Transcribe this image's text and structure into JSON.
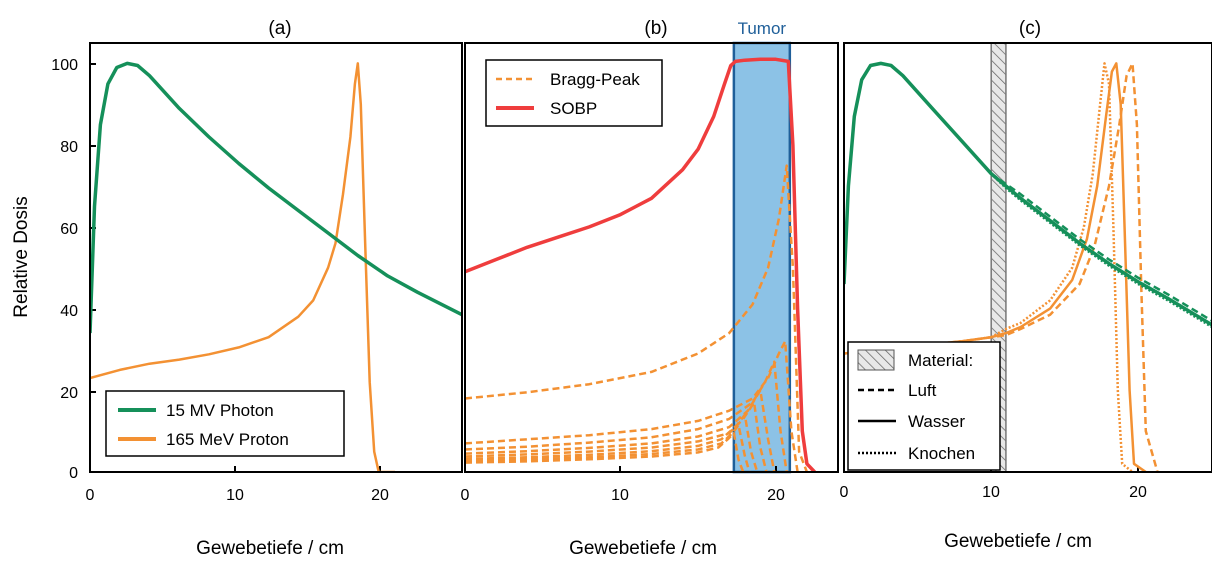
{
  "colors": {
    "photon": "#15905a",
    "proton": "#f39133",
    "sobp": "#ef3d3d",
    "tumor_fill": "#8cc2e6",
    "tumor_edge": "#1f5f99"
  },
  "ylabel": "Relative Dosis",
  "chart_data": [
    {
      "type": "line",
      "title": "(a)",
      "xlabel": "Gewebetiefe / cm",
      "ylabel": "Relative Dosis",
      "xlim": [
        0,
        25
      ],
      "ylim": [
        0,
        105
      ],
      "xticks": [
        "0",
        "10",
        "20"
      ],
      "yticks": [
        "0",
        "20",
        "40",
        "60",
        "80",
        "100"
      ],
      "legend_position": "bottom-center",
      "series": [
        {
          "name": "15 MV Photon",
          "color": "#15905a",
          "style": "solid",
          "x": [
            0,
            0.3,
            0.7,
            1.2,
            1.8,
            2.5,
            3.2,
            4,
            6,
            8,
            10,
            12,
            14,
            16,
            18,
            20,
            22,
            25
          ],
          "y": [
            34,
            65,
            85,
            95,
            99,
            100,
            99.5,
            97,
            89,
            82,
            75.5,
            69.5,
            64,
            58.5,
            53,
            48,
            44,
            38.5
          ]
        },
        {
          "name": "165 MeV Proton",
          "color": "#f39133",
          "style": "solid",
          "x": [
            0,
            2,
            4,
            6,
            8,
            10,
            12,
            14,
            15,
            16,
            16.5,
            17,
            17.5,
            17.8,
            18.0,
            18.2,
            18.5,
            18.8,
            19.1,
            19.4,
            20.5
          ],
          "y": [
            23,
            25,
            26.5,
            27.5,
            28.8,
            30.5,
            33,
            38,
            42,
            50,
            56,
            68,
            82,
            95,
            100,
            90,
            55,
            22,
            5,
            0,
            0
          ]
        }
      ]
    },
    {
      "type": "line",
      "title": "(b)",
      "xlabel": "Gewebetiefe / cm",
      "xlim": [
        0,
        24
      ],
      "ylim": [
        0,
        105
      ],
      "xticks": [
        "0",
        "10",
        "20"
      ],
      "annotation": "Tumor",
      "tumor_region": [
        17.3,
        20.9
      ],
      "legend_position": "top-left",
      "series": [
        {
          "name": "SOBP",
          "color": "#ef3d3d",
          "style": "solid",
          "x": [
            0,
            2,
            4,
            6,
            8,
            10,
            12,
            14,
            15,
            16,
            16.7,
            17.1,
            17.4,
            18,
            19,
            20,
            20.8,
            21.1,
            21.4,
            21.7,
            22,
            22.5
          ],
          "y": [
            49,
            52,
            55,
            57.5,
            60,
            63,
            67,
            74,
            79,
            87,
            95,
            99.5,
            100.5,
            100.8,
            101,
            101,
            100.5,
            80,
            40,
            10,
            2,
            0
          ]
        },
        {
          "name": "Bragg-Peak",
          "color": "#f39133",
          "style": "dashed",
          "x": [
            0,
            4,
            8,
            12,
            15,
            17,
            18.5,
            19.5,
            20.2,
            20.7,
            21.1,
            21.5,
            22
          ],
          "y": [
            18,
            19.5,
            21.5,
            24.5,
            29,
            34,
            41,
            50,
            62,
            75,
            50,
            5,
            0
          ]
        },
        {
          "name": "",
          "color": "#f39133",
          "style": "dashed",
          "x": [
            0,
            4,
            8,
            12,
            15,
            17,
            18.5,
            19.5,
            20.2,
            20.6,
            21.0,
            21.4
          ],
          "y": [
            7,
            8,
            9,
            10.5,
            12.5,
            15,
            18,
            23,
            29,
            32,
            10,
            0
          ]
        },
        {
          "name": "",
          "color": "#f39133",
          "style": "dashed",
          "x": [
            0,
            4,
            8,
            12,
            15,
            17,
            18.5,
            19.3,
            19.9,
            20.3,
            20.7
          ],
          "y": [
            5.5,
            6.2,
            7.2,
            8.5,
            10.5,
            13,
            17,
            22,
            27,
            10,
            0
          ]
        },
        {
          "name": "",
          "color": "#f39133",
          "style": "dashed",
          "x": [
            0,
            4,
            8,
            12,
            15,
            17,
            18.2,
            19.0,
            19.5,
            19.9
          ],
          "y": [
            4.5,
            5.1,
            5.9,
            7,
            8.7,
            11,
            15,
            20,
            8,
            0
          ]
        },
        {
          "name": "",
          "color": "#f39133",
          "style": "dashed",
          "x": [
            0,
            4,
            8,
            12,
            15,
            17,
            17.9,
            18.6,
            19.0,
            19.4
          ],
          "y": [
            3.8,
            4.3,
            5,
            6,
            7.5,
            9.5,
            13,
            17,
            6,
            0
          ]
        },
        {
          "name": "",
          "color": "#f39133",
          "style": "dashed",
          "x": [
            0,
            4,
            8,
            12,
            15,
            16.5,
            17.5,
            18.0,
            18.4,
            18.8
          ],
          "y": [
            3.2,
            3.6,
            4.2,
            5.1,
            6.4,
            8,
            11.5,
            14,
            5,
            0
          ]
        },
        {
          "name": "",
          "color": "#f39133",
          "style": "dashed",
          "x": [
            0,
            4,
            8,
            12,
            15,
            16.5,
            17.2,
            17.6,
            18.0,
            18.3
          ],
          "y": [
            2.7,
            3.1,
            3.6,
            4.4,
            5.5,
            7,
            9.5,
            11.5,
            4,
            0
          ]
        },
        {
          "name": "",
          "color": "#f39133",
          "style": "dashed",
          "x": [
            0,
            4,
            8,
            12,
            15,
            16.3,
            16.9,
            17.3,
            17.6,
            17.9
          ],
          "y": [
            2.3,
            2.6,
            3.1,
            3.8,
            4.8,
            6,
            8,
            9.5,
            3,
            0
          ]
        }
      ]
    },
    {
      "type": "line",
      "title": "(c)",
      "xlabel": "Gewebetiefe / cm",
      "xlim": [
        0,
        25
      ],
      "ylim": [
        0,
        105
      ],
      "xticks": [
        "0",
        "10",
        "20"
      ],
      "material_region": [
        10,
        11
      ],
      "legend_position": "bottom-left",
      "legend": [
        {
          "label": "Material:",
          "marker": "hatched-box"
        },
        {
          "label": "Luft",
          "marker": "dashed"
        },
        {
          "label": "Wasser",
          "marker": "solid"
        },
        {
          "label": "Knochen",
          "marker": "dotted"
        }
      ],
      "series": [
        {
          "name": "",
          "color": "#15905a",
          "style": "solid",
          "x": [
            0,
            0.3,
            0.7,
            1.2,
            1.8,
            2.5,
            3.2,
            4,
            6,
            8,
            10,
            11,
            12,
            14,
            16,
            18,
            20,
            22,
            25
          ],
          "y": [
            46,
            70,
            87,
            96,
            99.5,
            100,
            99.5,
            97,
            89,
            81,
            73,
            70,
            67,
            61.5,
            56,
            51,
            46.5,
            42.5,
            36
          ]
        },
        {
          "name": "",
          "color": "#15905a",
          "style": "dashed",
          "x": [
            10,
            11,
            12,
            14,
            16,
            18,
            20,
            22,
            25
          ],
          "y": [
            73,
            70.5,
            68,
            62.5,
            57,
            52,
            47.5,
            43.5,
            37
          ]
        },
        {
          "name": "",
          "color": "#15905a",
          "style": "dotted",
          "x": [
            10,
            11,
            12,
            14,
            16,
            18,
            20,
            22,
            25
          ],
          "y": [
            73,
            69.5,
            66.5,
            61,
            55.5,
            50.5,
            46,
            42,
            35.5
          ]
        },
        {
          "name": "",
          "color": "#f39133",
          "style": "solid",
          "x": [
            0,
            4,
            8,
            10,
            11,
            12,
            14,
            15.5,
            16.5,
            17.2,
            17.8,
            18.2,
            18.5,
            18.8,
            19.1,
            19.4,
            19.7,
            20.5
          ],
          "y": [
            29,
            30.5,
            32,
            33,
            34,
            35.5,
            40,
            47,
            57,
            70,
            87,
            98,
            100,
            90,
            55,
            20,
            2,
            0
          ]
        },
        {
          "name": "",
          "color": "#f39133",
          "style": "dashed",
          "x": [
            0,
            4,
            8,
            10,
            11,
            12,
            14,
            16,
            17,
            18,
            18.7,
            19.2,
            19.6,
            19.9,
            20.2,
            20.5,
            21.3
          ],
          "y": [
            29,
            30.5,
            32,
            33,
            33.5,
            35,
            38.5,
            46,
            55,
            70,
            85,
            97,
            100,
            85,
            45,
            10,
            0
          ]
        },
        {
          "name": "",
          "color": "#f39133",
          "style": "dotted",
          "x": [
            0,
            4,
            8,
            10,
            11,
            12,
            14,
            15.5,
            16.3,
            16.9,
            17.4,
            17.7,
            18.0,
            18.3,
            18.6,
            18.9,
            19.6
          ],
          "y": [
            29,
            30.5,
            32,
            33,
            35,
            36.5,
            42,
            50,
            60,
            73,
            90,
            100,
            95,
            60,
            20,
            2,
            0
          ]
        }
      ]
    }
  ]
}
